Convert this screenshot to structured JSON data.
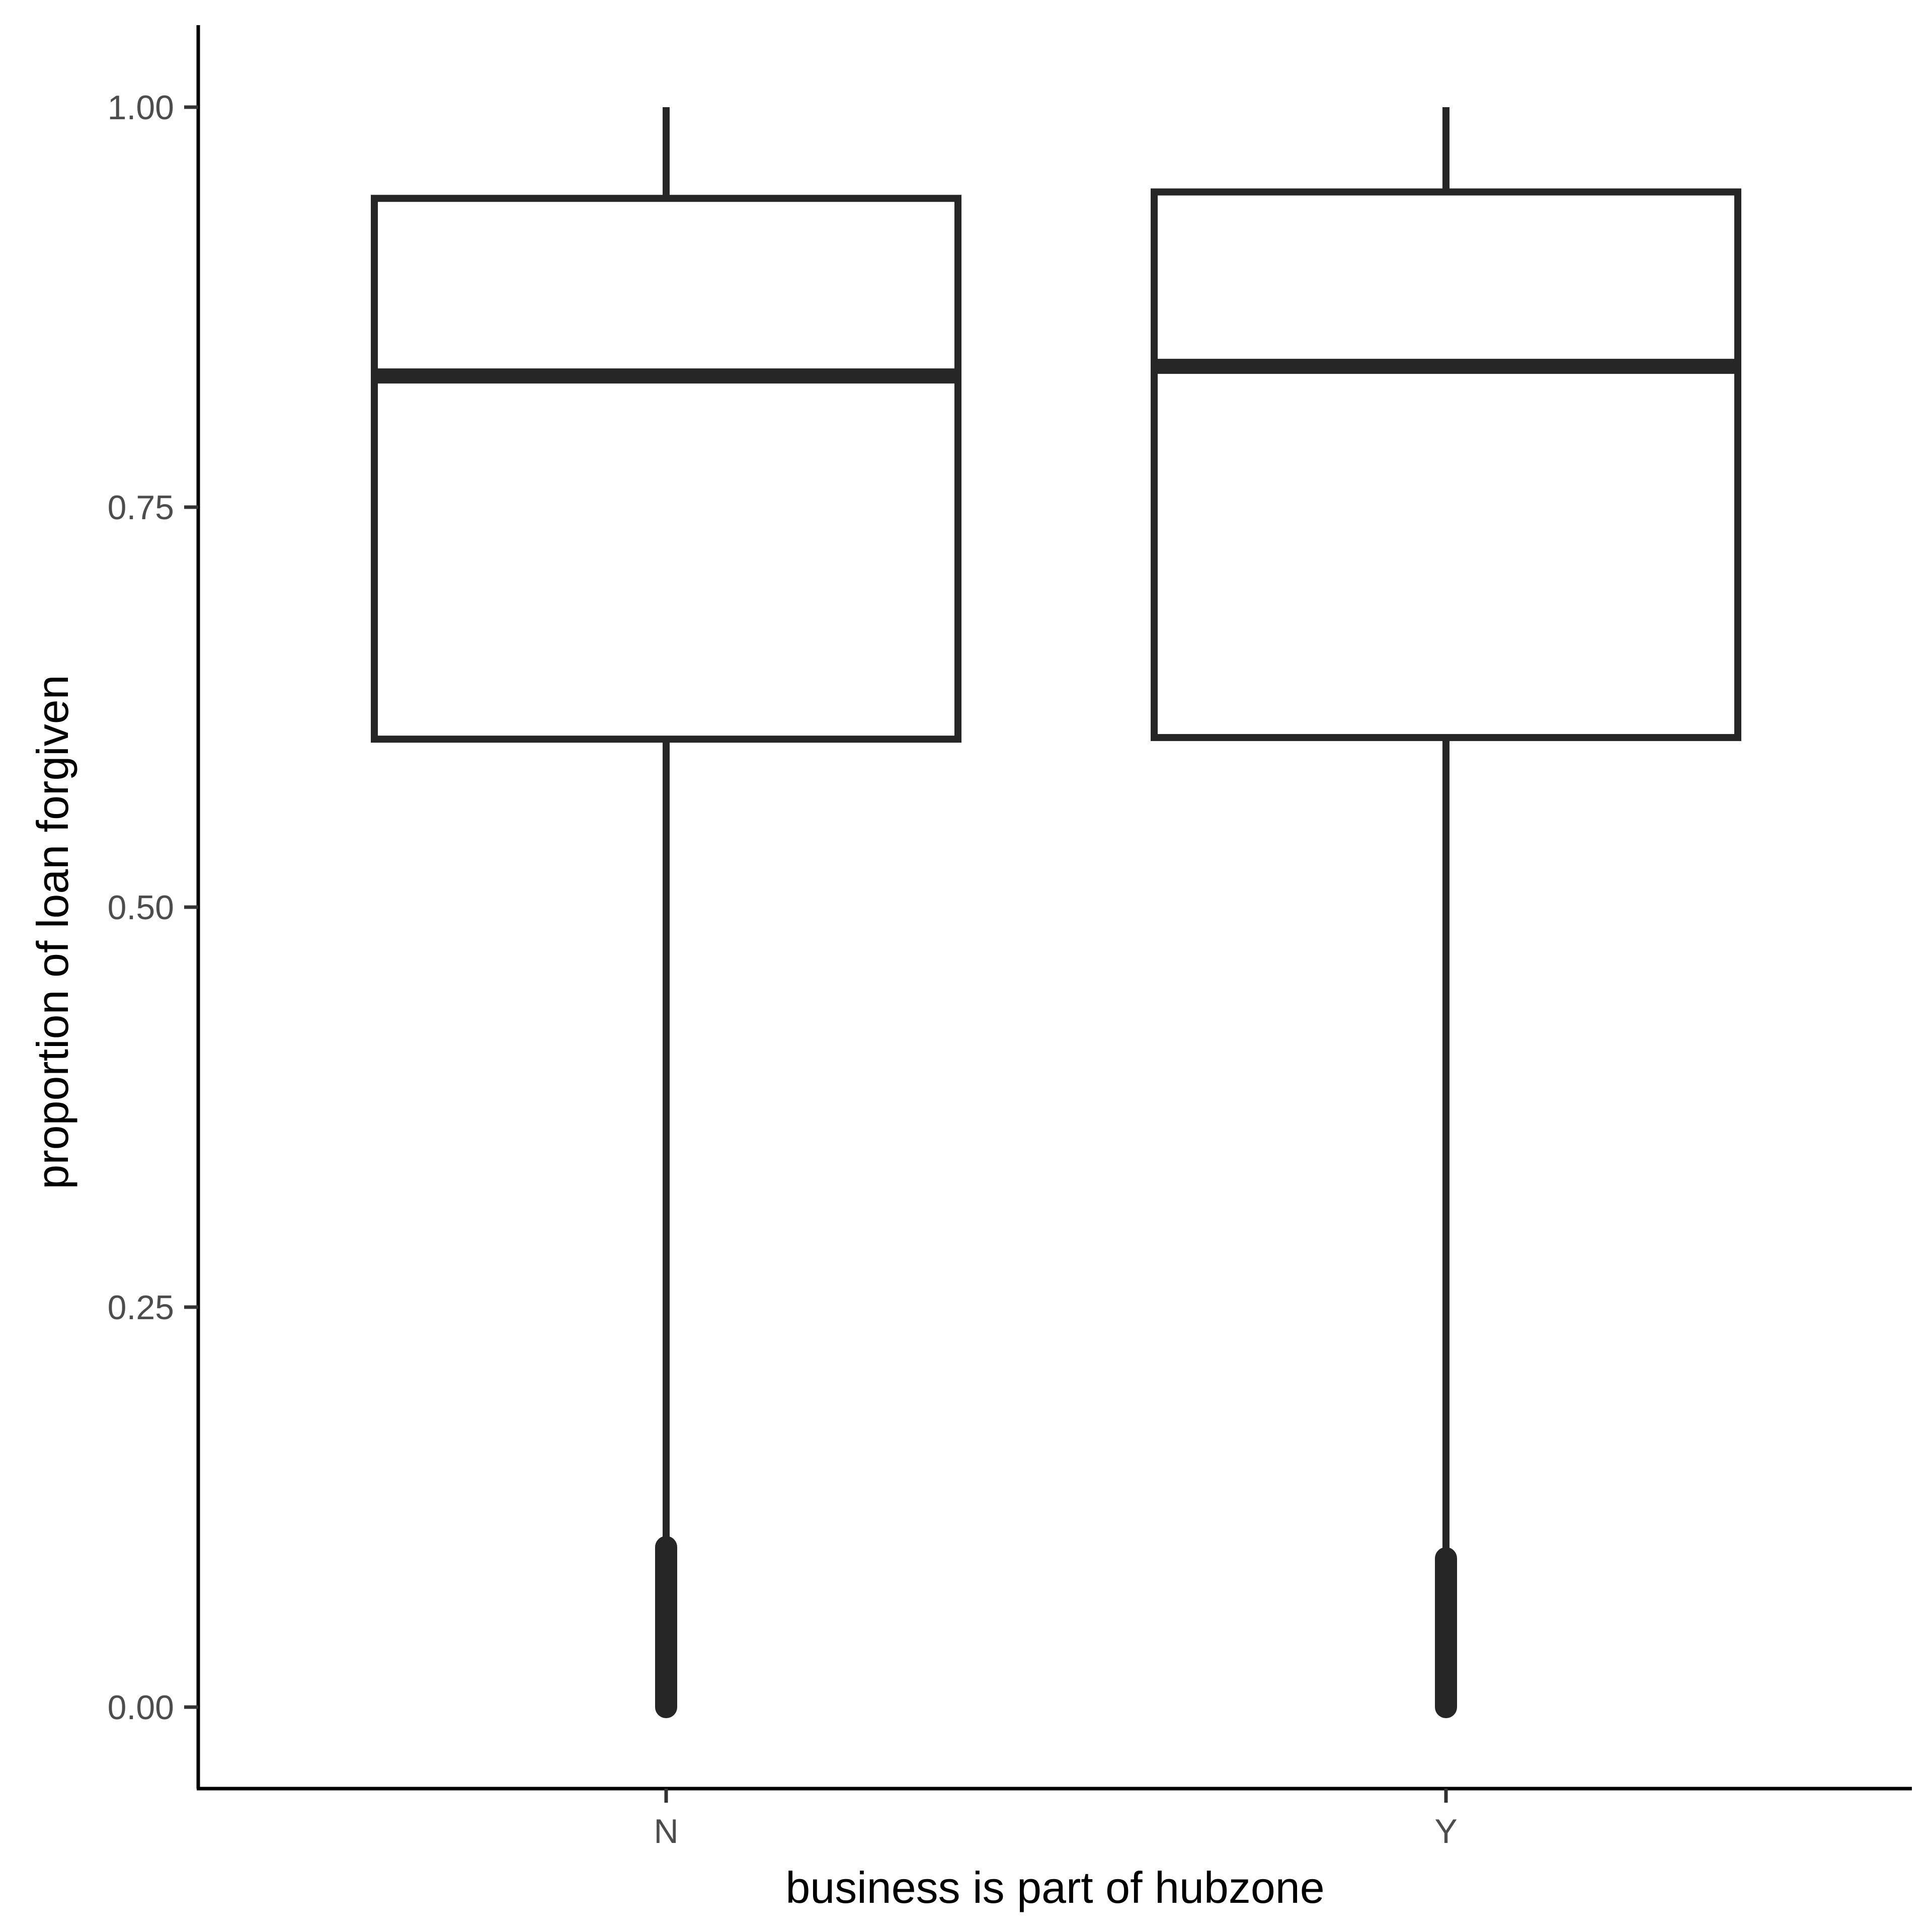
{
  "chart_data": {
    "type": "boxplot",
    "xlabel": "business is part of hubzone",
    "ylabel": "proportion of loan forgiven",
    "categories": [
      "N",
      "Y"
    ],
    "ylim": [
      -0.05,
      1.05
    ],
    "yticks": [
      0.0,
      0.25,
      0.5,
      0.75,
      1.0
    ],
    "ytick_labels": [
      "0.00",
      "0.25",
      "0.50",
      "0.75",
      "1.00"
    ],
    "boxes": [
      {
        "category": "N",
        "whisker_low": 0.1,
        "q1": 0.605,
        "median": 0.832,
        "q3": 0.943,
        "whisker_high": 1.0,
        "outliers_range": [
          0.0,
          0.1
        ]
      },
      {
        "category": "Y",
        "whisker_low": 0.093,
        "q1": 0.606,
        "median": 0.838,
        "q3": 0.947,
        "whisker_high": 1.0,
        "outliers_range": [
          0.0,
          0.093
        ]
      }
    ],
    "grid": false,
    "legend": "none",
    "colors": {
      "stroke": "#262626",
      "fill": "#ffffff",
      "axis": "#000000",
      "tick_label": "#4d4d4d"
    }
  }
}
